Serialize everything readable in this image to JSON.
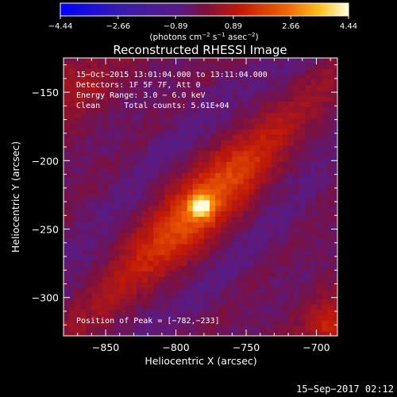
{
  "chart_data": {
    "type": "heatmap",
    "title": "Reconstructed RHESSI Image",
    "xlabel": "Heliocentric X (arcsec)",
    "ylabel": "Heliocentric Y (arcsec)",
    "xlim": [
      -880,
      -685
    ],
    "ylim": [
      -328,
      -125
    ],
    "xticks": [
      -850,
      -800,
      -750,
      -700
    ],
    "yticks": [
      -150,
      -200,
      -250,
      -300
    ],
    "xtick_labels": [
      "−850",
      "−800",
      "−750",
      "−700"
    ],
    "ytick_labels": [
      "−150",
      "−200",
      "−250",
      "−300"
    ],
    "colorbar": {
      "range": [
        -4.44,
        4.44
      ],
      "ticks": [
        -4.44,
        -2.66,
        -0.89,
        0.89,
        2.66,
        4.44
      ],
      "tick_labels": [
        "−4.44",
        "−2.66",
        "−0.89",
        "0.89",
        "2.66",
        "4.44"
      ],
      "unit_parts": [
        "(photons cm",
        "−2",
        " s",
        "−1",
        " asec",
        "−2",
        ")"
      ]
    },
    "annotation_lines": [
      "15−Oct−2015 13:01:04.000 to 13:11:04.000",
      "Detectors: 1F 5F 7F, Att 0",
      "Energy Range: 3.0 − 6.0 keV",
      "Clean     Total counts: 5.61E+04"
    ],
    "peak_label": "Position of Peak = [−782,−233]",
    "peak": [
      -782,
      -233
    ],
    "peak_value": 4.44,
    "source_orientation": "elongated blob from upper-left to lower-right, peak near center",
    "background": "diagonal bands of purple/dark ripples"
  },
  "footer": {
    "timestamp": "15−Sep−2017 02:12"
  }
}
